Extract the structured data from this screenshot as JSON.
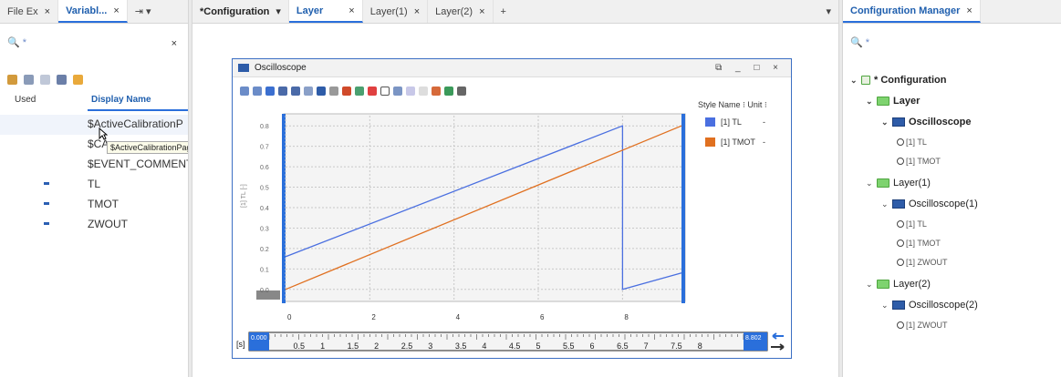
{
  "left_panel": {
    "tabs": [
      {
        "label": "File Ex",
        "close": "×"
      },
      {
        "label": "Variabl...",
        "close": "×"
      },
      {
        "label": "⇥ ▾"
      }
    ],
    "search_placeholder": "🔍 *",
    "search_close": "×",
    "columns": {
      "used": "Used",
      "display_name": "Display Name"
    },
    "rows": [
      {
        "name": "$ActiveCalibrationP",
        "used": false
      },
      {
        "name": "$CA",
        "used": false
      },
      {
        "name": "$EVENT_COMMENT",
        "used": false
      },
      {
        "name": "TL",
        "used": true
      },
      {
        "name": "TMOT",
        "used": true
      },
      {
        "name": "ZWOUT",
        "used": true
      }
    ],
    "tooltip": "$ActiveCalibrationPage"
  },
  "editor": {
    "tabs": [
      {
        "label": "*Configuration",
        "close": "▾"
      },
      {
        "label": "Layer",
        "close": "×"
      },
      {
        "label": "Layer(1)",
        "close": "×"
      },
      {
        "label": "Layer(2)",
        "close": "×"
      },
      {
        "label": "+"
      }
    ],
    "overflow": "▾"
  },
  "oscilloscope": {
    "title": "Oscilloscope",
    "window_buttons": "⧉ _ □ ×",
    "legend_header": "Style Name  ⁝ Unit  ⁝",
    "legend": [
      {
        "name": "[1] TL",
        "unit": "-",
        "color": "#4a6fe0"
      },
      {
        "name": "[1] TMOT",
        "unit": "-",
        "color": "#e07020"
      }
    ],
    "y_axis_label": "[1] TL [-]",
    "x_axis_unit": "[s]",
    "x_range_start": "0.000",
    "x_range_end": "8.802",
    "chart_data": {
      "type": "line",
      "title": "",
      "xlabel": "",
      "ylabel": "[1] TL [-]",
      "xlim": [
        0,
        9.4
      ],
      "ylim": [
        -0.05,
        0.85
      ],
      "x_ticks": [
        "0",
        "2",
        "4",
        "6",
        "8"
      ],
      "y_ticks": [
        "0.0",
        "0.1",
        "0.2",
        "0.3",
        "0.4",
        "0.5",
        "0.6",
        "0.7",
        "0.8"
      ],
      "time_scale_ticks": [
        "0.5",
        "1",
        "1.5",
        "2",
        "2.5",
        "3",
        "3.5",
        "4",
        "4.5",
        "5",
        "5.5",
        "6",
        "6.5",
        "7",
        "7.5",
        "8"
      ],
      "series": [
        {
          "name": "[1] TL",
          "color": "#4a6fe0",
          "points": [
            [
              0,
              0.16
            ],
            [
              8.0,
              0.8
            ],
            [
              8.0,
              0.0
            ],
            [
              9.4,
              0.08
            ]
          ]
        },
        {
          "name": "[1] TMOT",
          "color": "#e07020",
          "points": [
            [
              0,
              0.0
            ],
            [
              9.4,
              0.8
            ]
          ]
        }
      ]
    }
  },
  "right_panel": {
    "tab": {
      "label": "Configuration Manager",
      "close": "×"
    },
    "search_placeholder": "🔍 *",
    "tree": [
      {
        "label": "* Configuration",
        "level": 0,
        "kind": "root",
        "bold": true
      },
      {
        "label": "Layer",
        "level": 1,
        "kind": "folder",
        "bold": true
      },
      {
        "label": "Oscilloscope",
        "level": 2,
        "kind": "scope",
        "bold": true
      },
      {
        "label": "[1] TL",
        "level": 3,
        "kind": "signal"
      },
      {
        "label": "[1] TMOT",
        "level": 3,
        "kind": "signal"
      },
      {
        "label": "Layer(1)",
        "level": 1,
        "kind": "folder"
      },
      {
        "label": "Oscilloscope(1)",
        "level": 2,
        "kind": "scope"
      },
      {
        "label": "[1] TL",
        "level": 3,
        "kind": "signal"
      },
      {
        "label": "[1] TMOT",
        "level": 3,
        "kind": "signal"
      },
      {
        "label": "[1] ZWOUT",
        "level": 3,
        "kind": "signal"
      },
      {
        "label": "Layer(2)",
        "level": 1,
        "kind": "folder"
      },
      {
        "label": "Oscilloscope(2)",
        "level": 2,
        "kind": "scope"
      },
      {
        "label": "[1] ZWOUT",
        "level": 3,
        "kind": "signal"
      }
    ]
  }
}
